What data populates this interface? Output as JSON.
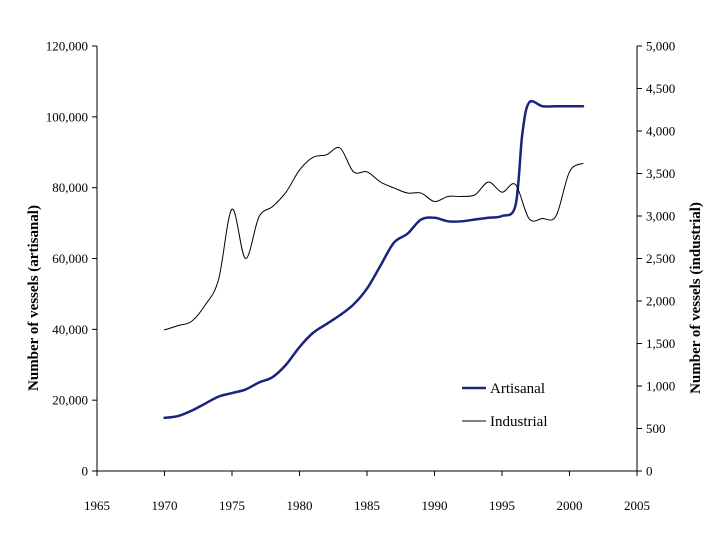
{
  "chart_data": {
    "type": "line",
    "title": "",
    "xlabel": "",
    "ylabel": "Number of vessels (artisanal)",
    "y2label": "Number of vessels (industrial)",
    "xlim": [
      1965,
      2005
    ],
    "ylim": [
      0,
      120000
    ],
    "y2lim": [
      0,
      5000
    ],
    "xticks": [
      "1965",
      "1970",
      "1975",
      "1980",
      "1985",
      "1990",
      "1995",
      "2000",
      "2005"
    ],
    "yticks": [
      "0",
      "20,000",
      "40,000",
      "60,000",
      "80,000",
      "100,000",
      "120,000"
    ],
    "y2ticks": [
      "0",
      "500",
      "1,000",
      "1,500",
      "2,000",
      "2,500",
      "3,000",
      "3,500",
      "4,000",
      "4,500",
      "5,000"
    ],
    "grid": false,
    "legend_position": "bottom-right",
    "series": [
      {
        "name": "Artisanal",
        "axis": "left",
        "color": "#1a237e",
        "x": [
          1970,
          1971,
          1972,
          1973,
          1974,
          1975,
          1976,
          1977,
          1978,
          1979,
          1980,
          1981,
          1982,
          1983,
          1984,
          1985,
          1986,
          1987,
          1988,
          1989,
          1990,
          1991,
          1992,
          1993,
          1994,
          1995,
          1996,
          1996.5,
          1997,
          1998,
          1999,
          2000,
          2001
        ],
        "values": [
          15000,
          15500,
          17000,
          19000,
          21000,
          22000,
          23000,
          25000,
          26500,
          30000,
          35000,
          39000,
          41500,
          44000,
          47000,
          51500,
          58000,
          64500,
          67000,
          71000,
          71500,
          70500,
          70500,
          71000,
          71500,
          72000,
          75000,
          95000,
          104000,
          103000,
          103000,
          103000,
          103000
        ]
      },
      {
        "name": "Industrial",
        "axis": "right",
        "color": "#000000",
        "x": [
          1970,
          1971,
          1972,
          1973,
          1974,
          1975,
          1976,
          1977,
          1978,
          1979,
          1980,
          1981,
          1982,
          1983,
          1984,
          1985,
          1986,
          1987,
          1988,
          1989,
          1990,
          1991,
          1992,
          1993,
          1994,
          1995,
          1996,
          1997,
          1998,
          1999,
          2000,
          2001
        ],
        "values": [
          1660,
          1710,
          1760,
          1950,
          2250,
          3080,
          2500,
          2990,
          3110,
          3280,
          3540,
          3690,
          3720,
          3800,
          3520,
          3520,
          3400,
          3330,
          3270,
          3270,
          3170,
          3230,
          3230,
          3250,
          3400,
          3280,
          3370,
          2970,
          2970,
          3000,
          3520,
          3620
        ]
      }
    ]
  }
}
